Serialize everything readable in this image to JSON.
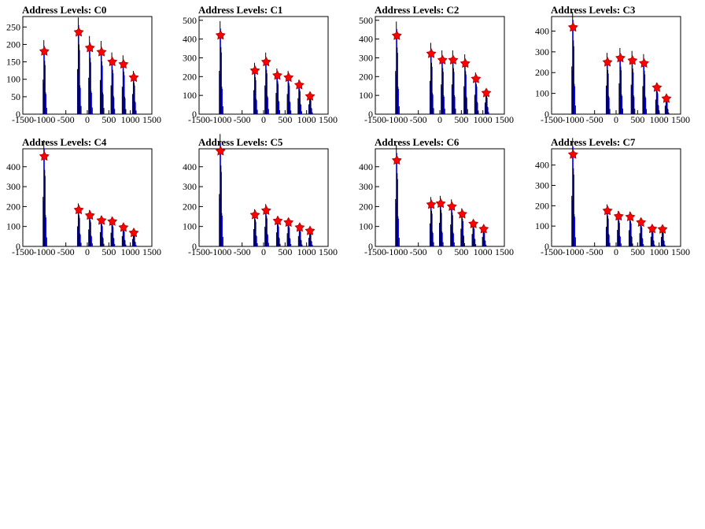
{
  "chart_data": [
    {
      "type": "bar",
      "title": "Address Levels: C0",
      "xlim": [
        -1500,
        1500
      ],
      "ylim": [
        0,
        280
      ],
      "yticks": [
        0,
        50,
        100,
        150,
        200,
        250
      ],
      "xticks": [
        -1500,
        -1000,
        -500,
        0,
        500,
        1000,
        1500
      ],
      "peaks": [
        {
          "x": -1000,
          "y": 180
        },
        {
          "x": -200,
          "y": 235
        },
        {
          "x": 60,
          "y": 190
        },
        {
          "x": 330,
          "y": 178
        },
        {
          "x": 580,
          "y": 150
        },
        {
          "x": 840,
          "y": 143
        },
        {
          "x": 1080,
          "y": 105
        }
      ],
      "marker_color": "#ff0000",
      "bar_color": "#0000ff"
    },
    {
      "type": "bar",
      "title": "Address Levels: C1",
      "xlim": [
        -1500,
        1500
      ],
      "ylim": [
        0,
        520
      ],
      "yticks": [
        0,
        100,
        200,
        300,
        400,
        500
      ],
      "xticks": [
        -1500,
        -1000,
        -500,
        0,
        500,
        1000,
        1500
      ],
      "peaks": [
        {
          "x": -1000,
          "y": 420
        },
        {
          "x": -200,
          "y": 232
        },
        {
          "x": 60,
          "y": 278
        },
        {
          "x": 320,
          "y": 206
        },
        {
          "x": 580,
          "y": 195
        },
        {
          "x": 830,
          "y": 155
        },
        {
          "x": 1080,
          "y": 95
        }
      ],
      "marker_color": "#ff0000",
      "bar_color": "#0000ff"
    },
    {
      "type": "bar",
      "title": "Address Levels: C2",
      "xlim": [
        -1500,
        1500
      ],
      "ylim": [
        0,
        520
      ],
      "yticks": [
        0,
        100,
        200,
        300,
        400,
        500
      ],
      "xticks": [
        -1500,
        -1000,
        -500,
        0,
        500,
        1000,
        1500
      ],
      "peaks": [
        {
          "x": -1000,
          "y": 418
        },
        {
          "x": -200,
          "y": 322
        },
        {
          "x": 60,
          "y": 288
        },
        {
          "x": 310,
          "y": 288
        },
        {
          "x": 590,
          "y": 270
        },
        {
          "x": 840,
          "y": 188
        },
        {
          "x": 1080,
          "y": 113
        }
      ],
      "marker_color": "#ff0000",
      "bar_color": "#0000ff"
    },
    {
      "type": "bar",
      "title": "Address Levels: C3",
      "xlim": [
        -1500,
        1500
      ],
      "ylim": [
        0,
        470
      ],
      "yticks": [
        0,
        100,
        200,
        300,
        400
      ],
      "xticks": [
        -1500,
        -1000,
        -500,
        0,
        500,
        1000,
        1500
      ],
      "peaks": [
        {
          "x": -1000,
          "y": 418
        },
        {
          "x": -200,
          "y": 250
        },
        {
          "x": 100,
          "y": 270
        },
        {
          "x": 380,
          "y": 258
        },
        {
          "x": 650,
          "y": 245
        },
        {
          "x": 950,
          "y": 128
        },
        {
          "x": 1170,
          "y": 75
        }
      ],
      "marker_color": "#ff0000",
      "bar_color": "#0000ff"
    },
    {
      "type": "bar",
      "title": "Address Levels: C4",
      "xlim": [
        -1500,
        1500
      ],
      "ylim": [
        0,
        490
      ],
      "yticks": [
        0,
        100,
        200,
        300,
        400
      ],
      "xticks": [
        -1500,
        -1000,
        -500,
        0,
        500,
        1000,
        1500
      ],
      "peaks": [
        {
          "x": -1000,
          "y": 452
        },
        {
          "x": -200,
          "y": 183
        },
        {
          "x": 60,
          "y": 155
        },
        {
          "x": 330,
          "y": 130
        },
        {
          "x": 580,
          "y": 125
        },
        {
          "x": 840,
          "y": 95
        },
        {
          "x": 1080,
          "y": 68
        }
      ],
      "marker_color": "#ff0000",
      "bar_color": "#0000ff"
    },
    {
      "type": "bar",
      "title": "Address Levels: C5",
      "xlim": [
        -1500,
        1500
      ],
      "ylim": [
        0,
        490
      ],
      "yticks": [
        0,
        100,
        200,
        300,
        400
      ],
      "xticks": [
        -1500,
        -1000,
        -500,
        0,
        500,
        1000,
        1500
      ],
      "peaks": [
        {
          "x": -1000,
          "y": 478
        },
        {
          "x": -200,
          "y": 158
        },
        {
          "x": 60,
          "y": 180
        },
        {
          "x": 330,
          "y": 128
        },
        {
          "x": 580,
          "y": 120
        },
        {
          "x": 840,
          "y": 95
        },
        {
          "x": 1080,
          "y": 78
        }
      ],
      "marker_color": "#ff0000",
      "bar_color": "#0000ff"
    },
    {
      "type": "bar",
      "title": "Address Levels: C6",
      "xlim": [
        -1500,
        1500
      ],
      "ylim": [
        0,
        490
      ],
      "yticks": [
        0,
        100,
        200,
        300,
        400
      ],
      "xticks": [
        -1500,
        -1000,
        -500,
        0,
        500,
        1000,
        1500
      ],
      "peaks": [
        {
          "x": -1000,
          "y": 432
        },
        {
          "x": -200,
          "y": 210
        },
        {
          "x": 20,
          "y": 215
        },
        {
          "x": 280,
          "y": 200
        },
        {
          "x": 520,
          "y": 162
        },
        {
          "x": 780,
          "y": 113
        },
        {
          "x": 1020,
          "y": 87
        }
      ],
      "marker_color": "#ff0000",
      "bar_color": "#0000ff"
    },
    {
      "type": "bar",
      "title": "Address Levels: C7",
      "xlim": [
        -1500,
        1500
      ],
      "ylim": [
        0,
        480
      ],
      "yticks": [
        0,
        100,
        200,
        300,
        400
      ],
      "xticks": [
        -1500,
        -1000,
        -500,
        0,
        500,
        1000,
        1500
      ],
      "peaks": [
        {
          "x": -1000,
          "y": 452
        },
        {
          "x": -200,
          "y": 175
        },
        {
          "x": 60,
          "y": 148
        },
        {
          "x": 330,
          "y": 145
        },
        {
          "x": 580,
          "y": 118
        },
        {
          "x": 840,
          "y": 86
        },
        {
          "x": 1080,
          "y": 84
        }
      ],
      "marker_color": "#ff0000",
      "bar_color": "#0000ff"
    }
  ]
}
